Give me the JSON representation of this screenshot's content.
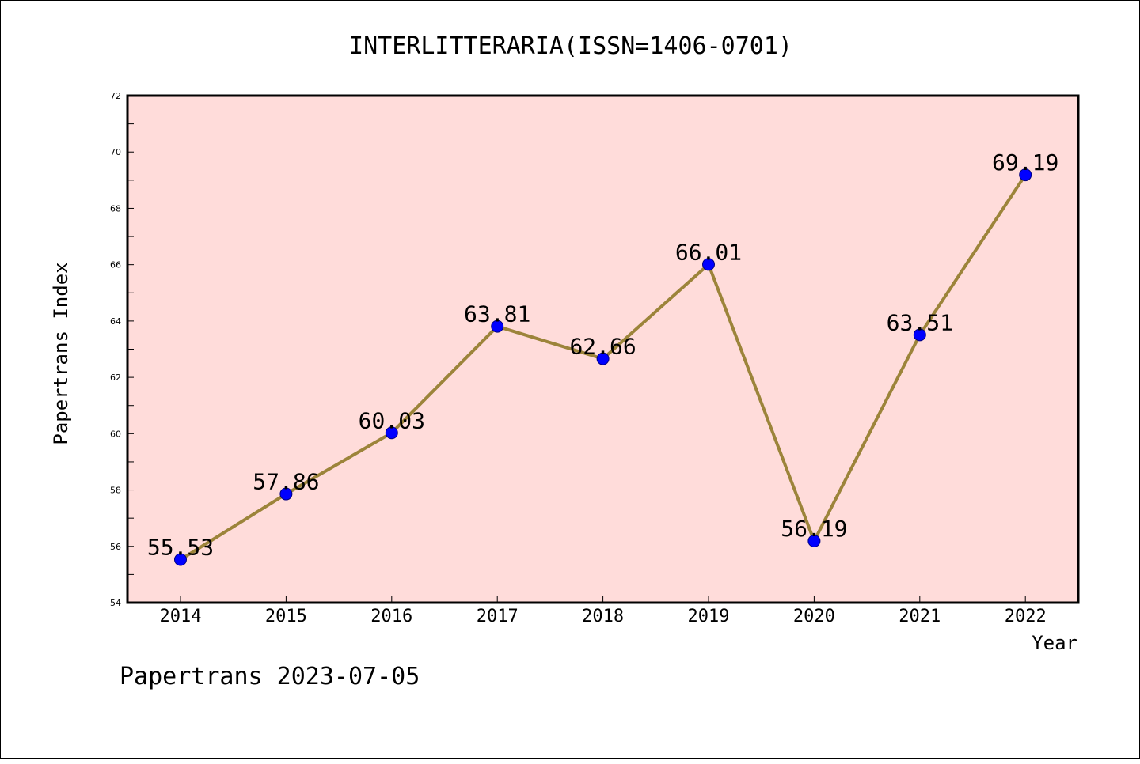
{
  "chart_data": {
    "type": "line",
    "title": "INTERLITTERARIA(ISSN=1406-0701)",
    "xlabel": "Year",
    "ylabel": "Papertrans Index",
    "x": [
      "2014",
      "2015",
      "2016",
      "2017",
      "2018",
      "2019",
      "2020",
      "2021",
      "2022"
    ],
    "series": [
      {
        "values": [
          55.53,
          57.86,
          60.03,
          63.81,
          62.66,
          66.01,
          56.19,
          63.51,
          69.19
        ],
        "labels": [
          "55.53",
          "57.86",
          "60.03",
          "63.81",
          "62.66",
          "66.01",
          "56.19",
          "63.51",
          "69.19"
        ]
      }
    ],
    "ylim": [
      54,
      72
    ],
    "yticks": [
      "54",
      "56",
      "58",
      "60",
      "62",
      "64",
      "66",
      "68",
      "70",
      "72"
    ],
    "grid": false,
    "legend": "none"
  },
  "footer": "Papertrans 2023-07-05",
  "colors": {
    "plot_background": "#ffdcda",
    "line": "#9c843a",
    "marker": "#0000ff",
    "marker_edge": "#000080"
  }
}
